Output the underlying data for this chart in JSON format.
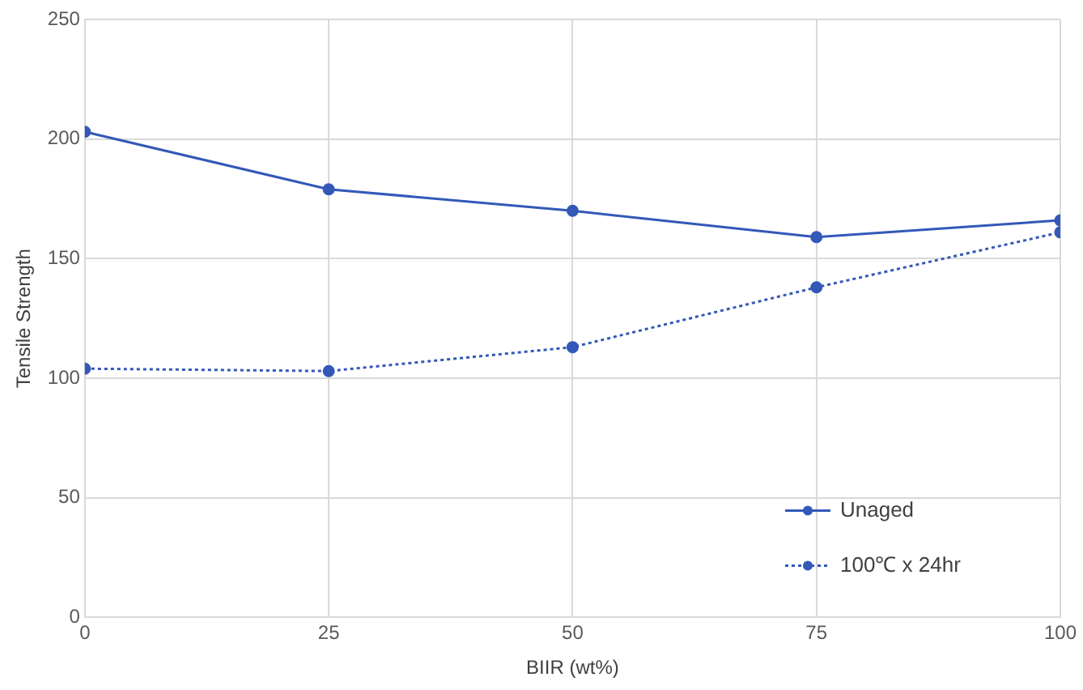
{
  "chart_data": {
    "type": "line",
    "xlabel": "BIIR (wt%)",
    "ylabel": "Tensile Strength",
    "x": [
      0,
      25,
      50,
      75,
      100
    ],
    "series": [
      {
        "name": "Unaged",
        "color": "#3358b8",
        "values": [
          203,
          179,
          170,
          159,
          166
        ],
        "line_style": "solid"
      },
      {
        "name": "100℃ x 24hr",
        "color": "#3358b8",
        "values": [
          104,
          103,
          113,
          138,
          161
        ],
        "line_style": "dotted"
      }
    ],
    "xlim": [
      0,
      100
    ],
    "xticks": [
      0,
      25,
      50,
      75,
      100
    ],
    "ylim": [
      0,
      250
    ],
    "yticks": [
      0,
      50,
      100,
      150,
      200,
      250
    ],
    "grid": true,
    "legend": "bottom right",
    "marker": "circle"
  }
}
